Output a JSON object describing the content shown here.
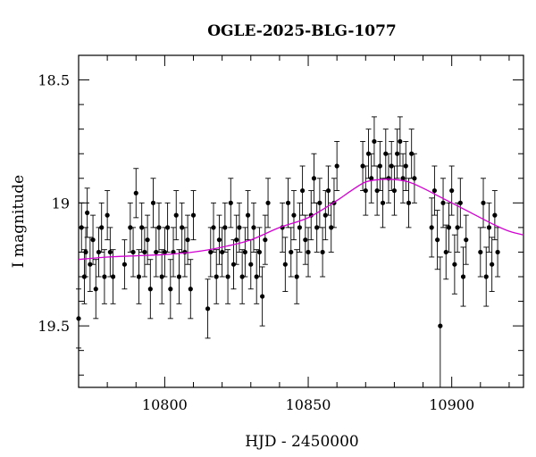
{
  "chart_data": {
    "type": "scatter",
    "title": "OGLE-2025-BLG-1077",
    "xlabel": "HJD - 2450000",
    "ylabel": "I magnitude",
    "xlim": [
      10770,
      10925
    ],
    "ylim": [
      19.75,
      18.4
    ],
    "y_inverted": true,
    "grid": false,
    "xticks": {
      "major": [
        10800,
        10850,
        10900
      ],
      "minor_step": 10
    },
    "yticks": {
      "major": [
        18.5,
        19,
        19.5
      ],
      "minor_step": 0.1
    },
    "tick_labels": {
      "x": [
        "10800",
        "10850",
        "10900"
      ],
      "y": [
        "18.5",
        "19",
        "19.5"
      ]
    },
    "colors": {
      "points": "#000000",
      "model": "#d200d2"
    },
    "model_curve": {
      "name": "",
      "x": [
        10770,
        10780,
        10790,
        10800,
        10810,
        10820,
        10830,
        10840,
        10850,
        10860,
        10865,
        10870,
        10875,
        10880,
        10885,
        10890,
        10895,
        10900,
        10905,
        10910,
        10915,
        10920,
        10925
      ],
      "y": [
        19.23,
        19.22,
        19.215,
        19.21,
        19.2,
        19.18,
        19.15,
        19.1,
        19.06,
        18.99,
        18.95,
        18.915,
        18.905,
        18.905,
        18.915,
        18.94,
        18.97,
        19.0,
        19.03,
        19.06,
        19.09,
        19.115,
        19.13
      ]
    },
    "series": [
      {
        "name": "",
        "x": [
          10770,
          10771,
          10772,
          10772.5,
          10773,
          10774,
          10775,
          10776,
          10777,
          10778,
          10779,
          10780,
          10781,
          10782,
          10786,
          10788,
          10789,
          10790,
          10791,
          10792,
          10793,
          10794,
          10795,
          10796,
          10797,
          10798,
          10799,
          10800,
          10801,
          10802,
          10803,
          10804,
          10805,
          10806,
          10807,
          10808,
          10809,
          10810,
          10815,
          10816,
          10817,
          10818,
          10819,
          10820,
          10821,
          10822,
          10823,
          10824,
          10825,
          10826,
          10827,
          10828,
          10829,
          10830,
          10831,
          10832,
          10833,
          10834,
          10835,
          10836,
          10841,
          10842,
          10843,
          10844,
          10845,
          10846,
          10847,
          10848,
          10849,
          10850,
          10851,
          10852,
          10853,
          10854,
          10855,
          10856,
          10857,
          10858,
          10859,
          10860,
          10869,
          10870,
          10871,
          10872,
          10873,
          10874,
          10875,
          10876,
          10877,
          10878,
          10879,
          10880,
          10881,
          10882,
          10883,
          10884,
          10885,
          10886,
          10887,
          10893,
          10894,
          10895,
          10896,
          10897,
          10898,
          10899,
          10900,
          10901,
          10902,
          10903,
          10904,
          10905,
          10910,
          10911,
          10912,
          10913,
          10914,
          10915,
          10916
        ],
        "y": [
          19.47,
          19.1,
          19.3,
          19.2,
          19.04,
          19.25,
          19.15,
          19.35,
          19.2,
          19.1,
          19.3,
          19.05,
          19.2,
          19.3,
          19.25,
          19.1,
          19.2,
          18.96,
          19.3,
          19.1,
          19.2,
          19.15,
          19.35,
          19.0,
          19.2,
          19.1,
          19.3,
          19.2,
          19.1,
          19.35,
          19.2,
          19.05,
          19.3,
          19.1,
          19.2,
          19.15,
          19.35,
          19.05,
          19.43,
          19.2,
          19.1,
          19.3,
          19.15,
          19.2,
          19.1,
          19.3,
          19.0,
          19.25,
          19.15,
          19.1,
          19.3,
          19.2,
          19.05,
          19.25,
          19.1,
          19.3,
          19.2,
          19.38,
          19.15,
          19.0,
          19.1,
          19.25,
          19.0,
          19.2,
          19.05,
          19.3,
          19.1,
          18.95,
          19.15,
          19.2,
          19.05,
          18.9,
          19.1,
          19.0,
          19.2,
          19.05,
          18.95,
          19.1,
          19.0,
          18.85,
          18.85,
          18.95,
          18.8,
          18.9,
          18.75,
          18.95,
          18.85,
          19.0,
          18.8,
          18.9,
          18.85,
          18.95,
          18.8,
          18.75,
          18.9,
          18.85,
          19.0,
          18.8,
          18.9,
          19.1,
          18.95,
          19.15,
          19.5,
          19.0,
          19.2,
          19.1,
          18.95,
          19.25,
          19.1,
          19.0,
          19.3,
          19.15,
          19.2,
          19.0,
          19.3,
          19.1,
          19.25,
          19.05,
          19.2
        ],
        "err": [
          0.12,
          0.1,
          0.11,
          0.1,
          0.1,
          0.11,
          0.1,
          0.12,
          0.1,
          0.1,
          0.11,
          0.1,
          0.1,
          0.11,
          0.1,
          0.1,
          0.1,
          0.1,
          0.11,
          0.1,
          0.1,
          0.1,
          0.12,
          0.1,
          0.1,
          0.1,
          0.11,
          0.1,
          0.1,
          0.12,
          0.1,
          0.1,
          0.11,
          0.1,
          0.1,
          0.1,
          0.12,
          0.1,
          0.12,
          0.1,
          0.1,
          0.11,
          0.1,
          0.1,
          0.1,
          0.11,
          0.1,
          0.1,
          0.1,
          0.1,
          0.11,
          0.1,
          0.1,
          0.1,
          0.1,
          0.11,
          0.1,
          0.12,
          0.1,
          0.1,
          0.1,
          0.11,
          0.1,
          0.1,
          0.1,
          0.11,
          0.1,
          0.1,
          0.1,
          0.1,
          0.1,
          0.1,
          0.1,
          0.1,
          0.1,
          0.1,
          0.1,
          0.1,
          0.1,
          0.1,
          0.1,
          0.1,
          0.1,
          0.1,
          0.1,
          0.1,
          0.1,
          0.1,
          0.1,
          0.1,
          0.1,
          0.1,
          0.1,
          0.1,
          0.1,
          0.1,
          0.1,
          0.1,
          0.1,
          0.12,
          0.1,
          0.12,
          0.28,
          0.1,
          0.11,
          0.1,
          0.1,
          0.12,
          0.1,
          0.1,
          0.12,
          0.1,
          0.1,
          0.1,
          0.12,
          0.1,
          0.11,
          0.1,
          0.1
        ]
      }
    ]
  }
}
